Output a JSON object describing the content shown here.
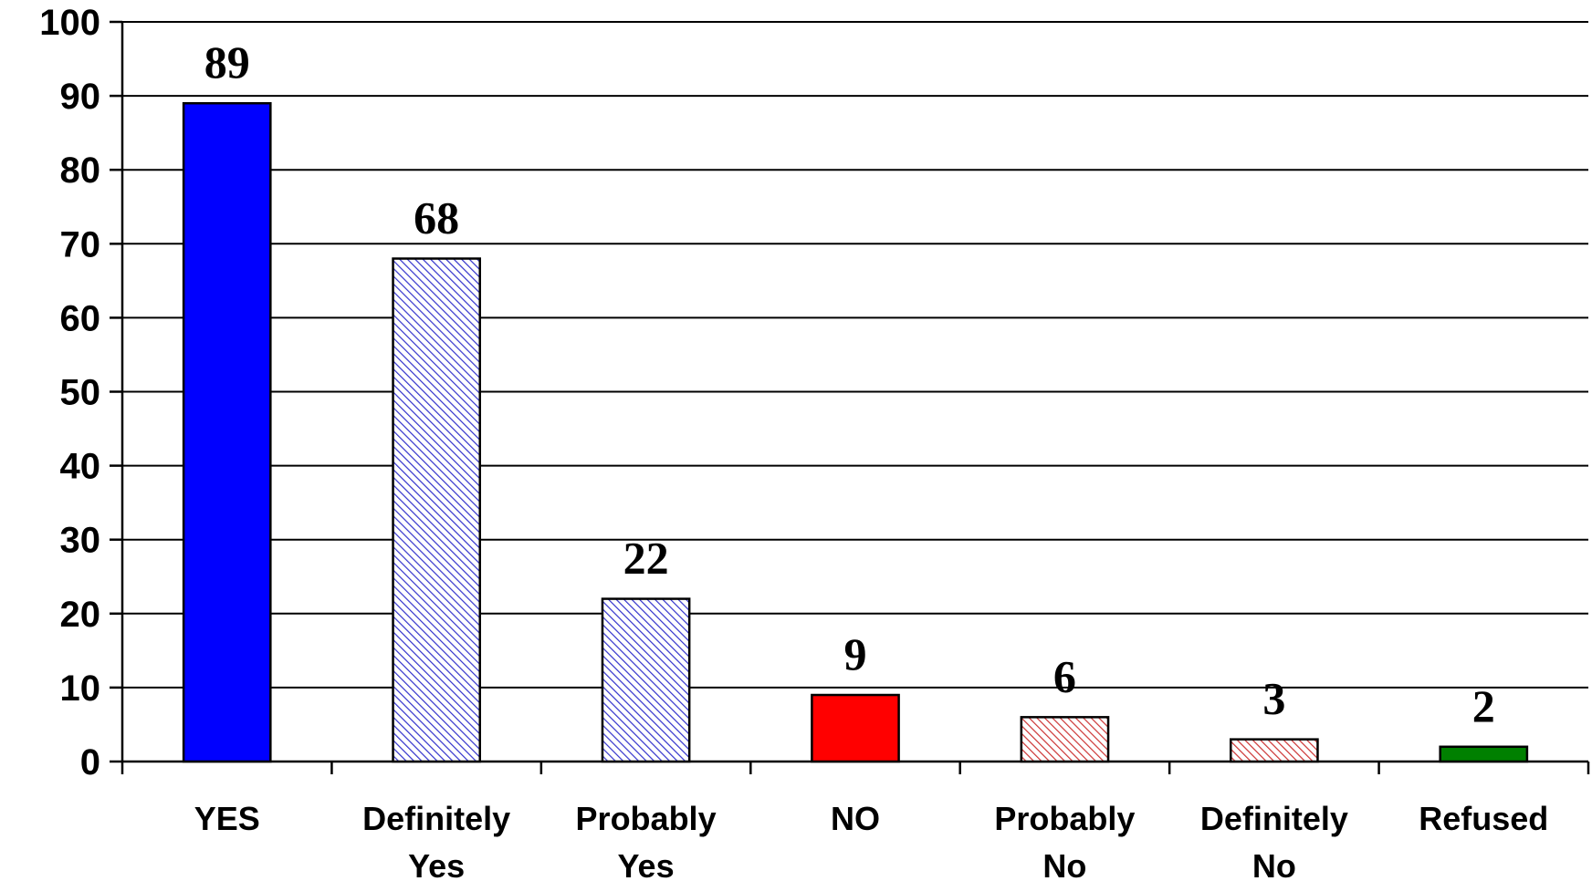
{
  "chart_data": {
    "type": "bar",
    "title": "",
    "xlabel": "",
    "ylabel": "",
    "ylim": [
      0,
      100
    ],
    "yticks": [
      0,
      10,
      20,
      30,
      40,
      50,
      60,
      70,
      80,
      90,
      100
    ],
    "grid": true,
    "legend": "none",
    "categories": [
      [
        "YES"
      ],
      [
        "Definitely",
        "Yes"
      ],
      [
        "Probably",
        "Yes"
      ],
      [
        "NO"
      ],
      [
        "Probably",
        "No"
      ],
      [
        "Definitely",
        "No"
      ],
      [
        "Refused"
      ]
    ],
    "values": [
      89,
      68,
      22,
      9,
      6,
      3,
      2
    ],
    "data_labels": [
      "89",
      "68",
      "22",
      "9",
      "6",
      "3",
      "2"
    ],
    "bar_styles": [
      {
        "fill": "#0000ff",
        "pattern": "solid"
      },
      {
        "fill": "#3333cc",
        "pattern": "hatched"
      },
      {
        "fill": "#3333cc",
        "pattern": "hatched"
      },
      {
        "fill": "#ff0000",
        "pattern": "solid"
      },
      {
        "fill": "#cc3333",
        "pattern": "hatched"
      },
      {
        "fill": "#cc3333",
        "pattern": "hatched"
      },
      {
        "fill": "#008000",
        "pattern": "solid"
      }
    ],
    "colors": {
      "grid": "#000000",
      "axis": "#000000",
      "bar_border": "#000000"
    }
  }
}
